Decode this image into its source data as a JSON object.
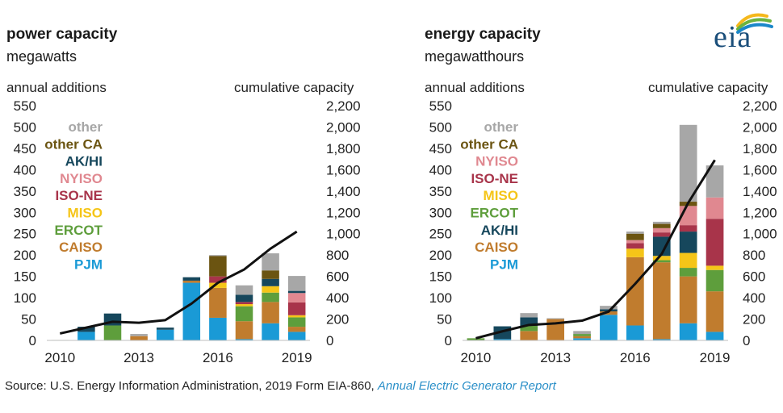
{
  "logo": {
    "text": "eia",
    "arc_colors": [
      "#f5b81c",
      "#6cb33f",
      "#1b87c9"
    ]
  },
  "source": {
    "prefix": "Source: U.S. Energy Information Administration, 2019 Form EIA-860, ",
    "link": "Annual Electric Generator Report"
  },
  "chart_data": [
    {
      "type": "bar",
      "stacked": true,
      "title": "power capacity",
      "subtitle": "megawatts",
      "ylabel": "annual additions",
      "y2label": "cumulative capacity",
      "ylim": [
        0,
        550
      ],
      "yticks": [
        0,
        50,
        100,
        150,
        200,
        250,
        300,
        350,
        400,
        450,
        500,
        550
      ],
      "y2lim": [
        0,
        2200
      ],
      "y2ticks": [
        "0",
        "200",
        "400",
        "600",
        "800",
        "1,000",
        "1,200",
        "1,400",
        "1,600",
        "1,800",
        "2,000",
        "2,200"
      ],
      "categories": [
        2010,
        2011,
        2012,
        2013,
        2014,
        2015,
        2016,
        2017,
        2018,
        2019
      ],
      "xtick_labels": [
        "2010",
        "2013",
        "2016",
        "2019"
      ],
      "legend_order": [
        "other",
        "other CA",
        "AK/HI",
        "NYISO",
        "ISO-NE",
        "MISO",
        "ERCOT",
        "CAISO",
        "PJM"
      ],
      "series": [
        {
          "name": "PJM",
          "color": "#1a9ad6",
          "values": [
            0,
            20,
            0,
            0,
            25,
            135,
            53,
            3,
            40,
            20
          ]
        },
        {
          "name": "CAISO",
          "color": "#c07c2e",
          "values": [
            0,
            0,
            0,
            10,
            0,
            5,
            70,
            42,
            50,
            12
          ]
        },
        {
          "name": "ERCOT",
          "color": "#5e9e3c",
          "values": [
            1,
            0,
            35,
            0,
            0,
            0,
            0,
            35,
            22,
            22
          ]
        },
        {
          "name": "MISO",
          "color": "#f5c518",
          "values": [
            0,
            0,
            0,
            0,
            0,
            0,
            12,
            5,
            15,
            5
          ]
        },
        {
          "name": "ISO-NE",
          "color": "#a8344a",
          "values": [
            0,
            0,
            0,
            0,
            0,
            0,
            15,
            5,
            0,
            30
          ]
        },
        {
          "name": "NYISO",
          "color": "#e08890",
          "values": [
            0,
            0,
            0,
            0,
            0,
            0,
            0,
            0,
            0,
            22
          ]
        },
        {
          "name": "AK/HI",
          "color": "#16475c",
          "values": [
            0,
            12,
            28,
            0,
            5,
            8,
            0,
            17,
            17,
            5
          ]
        },
        {
          "name": "other CA",
          "color": "#6b5411",
          "values": [
            0,
            0,
            0,
            0,
            0,
            0,
            48,
            0,
            20,
            0
          ]
        },
        {
          "name": "other",
          "color": "#a7a7a7",
          "values": [
            0,
            0,
            0,
            5,
            0,
            0,
            2,
            22,
            40,
            35
          ]
        }
      ],
      "cumulative": [
        65,
        120,
        175,
        165,
        190,
        345,
        540,
        665,
        860,
        1020
      ]
    },
    {
      "type": "bar",
      "stacked": true,
      "title": "energy capacity",
      "subtitle": "megawatthours",
      "ylabel": "annual additions",
      "y2label": "cumulative capacity",
      "ylim": [
        0,
        550
      ],
      "yticks": [
        0,
        50,
        100,
        150,
        200,
        250,
        300,
        350,
        400,
        450,
        500,
        550
      ],
      "y2lim": [
        0,
        2200
      ],
      "y2ticks": [
        "0",
        "200",
        "400",
        "600",
        "800",
        "1,000",
        "1,200",
        "1,400",
        "1,600",
        "1,800",
        "2,000",
        "2,200"
      ],
      "categories": [
        2010,
        2011,
        2012,
        2013,
        2014,
        2015,
        2016,
        2017,
        2018,
        2019
      ],
      "xtick_labels": [
        "2010",
        "2013",
        "2016",
        "2019"
      ],
      "legend_order": [
        "other",
        "other CA",
        "NYISO",
        "ISO-NE",
        "MISO",
        "ERCOT",
        "AK/HI",
        "CAISO",
        "PJM"
      ],
      "series": [
        {
          "name": "PJM",
          "color": "#1a9ad6",
          "values": [
            0,
            3,
            0,
            0,
            5,
            60,
            35,
            3,
            40,
            20
          ]
        },
        {
          "name": "CAISO",
          "color": "#c07c2e",
          "values": [
            0,
            0,
            22,
            50,
            5,
            8,
            160,
            180,
            110,
            95
          ]
        },
        {
          "name": "ERCOT",
          "color": "#5e9e3c",
          "values": [
            5,
            0,
            12,
            0,
            5,
            0,
            0,
            5,
            20,
            50
          ]
        },
        {
          "name": "MISO",
          "color": "#f5c518",
          "values": [
            0,
            0,
            0,
            0,
            0,
            0,
            20,
            10,
            35,
            10
          ]
        },
        {
          "name": "AK/HI",
          "color": "#16475c",
          "values": [
            0,
            30,
            20,
            0,
            0,
            5,
            0,
            45,
            50,
            0
          ]
        },
        {
          "name": "ISO-NE",
          "color": "#a8344a",
          "values": [
            0,
            0,
            0,
            0,
            0,
            0,
            13,
            10,
            15,
            110
          ]
        },
        {
          "name": "NYISO",
          "color": "#e08890",
          "values": [
            0,
            0,
            0,
            0,
            0,
            0,
            7,
            10,
            45,
            50
          ]
        },
        {
          "name": "other CA",
          "color": "#6b5411",
          "values": [
            0,
            0,
            0,
            0,
            0,
            0,
            15,
            10,
            10,
            0
          ]
        },
        {
          "name": "other",
          "color": "#a7a7a7",
          "values": [
            0,
            0,
            10,
            2,
            7,
            8,
            5,
            5,
            180,
            75
          ]
        }
      ],
      "cumulative": [
        20,
        85,
        145,
        160,
        185,
        270,
        530,
        810,
        1290,
        1690
      ]
    }
  ]
}
